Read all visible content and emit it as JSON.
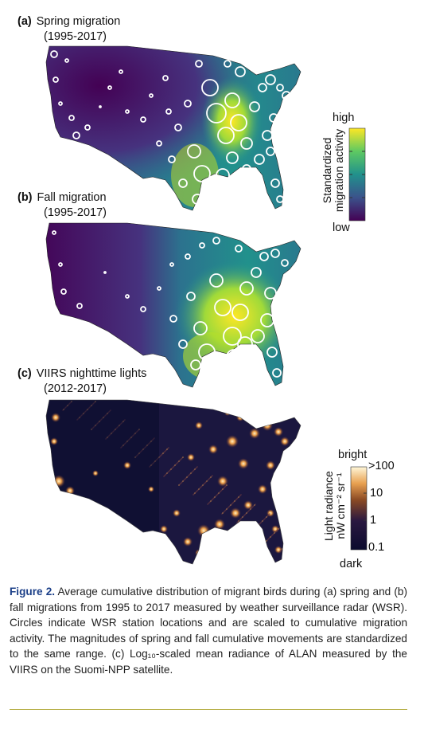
{
  "panels": [
    {
      "letter": "(a)",
      "title": "Spring migration",
      "years": "(1995-2017)"
    },
    {
      "letter": "(b)",
      "title": "Fall migration",
      "years": "(1995-2017)"
    },
    {
      "letter": "(c)",
      "title": "VIIRS nighttime lights",
      "years": "(2012-2017)"
    }
  ],
  "migration_colorbar": {
    "top_label": "high",
    "bottom_label": "low",
    "title_line1": "Standardized",
    "title_line2": "migration activity",
    "colors": [
      "#440154",
      "#3b528b",
      "#21918c",
      "#5ec962",
      "#fde725"
    ]
  },
  "light_colorbar": {
    "top_label": "bright",
    "bottom_label": "dark",
    "title_line1": "Light radiance",
    "title_line2": "nW cm⁻² sr⁻¹",
    "ticks": [
      ">100",
      "10",
      "1",
      "0.1"
    ],
    "colors": [
      "#0b0b2e",
      "#2a1840",
      "#8a4a24",
      "#e8a050",
      "#fff6d8"
    ]
  },
  "caption": {
    "label": "Figure 2.",
    "text": "Average cumulative distribution of migrant birds during (a) spring and (b) fall migrations from 1995 to 2017 measured by weather surveillance radar (WSR). Circles indicate WSR station locations and are scaled to cumulative migration activity. The magnitudes of spring and fall cumulative movements are standardized to the same range. (c) Log₁₀-scaled mean radiance of ALAN measured by the VIIRS on the Suomi-NPP satellite."
  }
}
